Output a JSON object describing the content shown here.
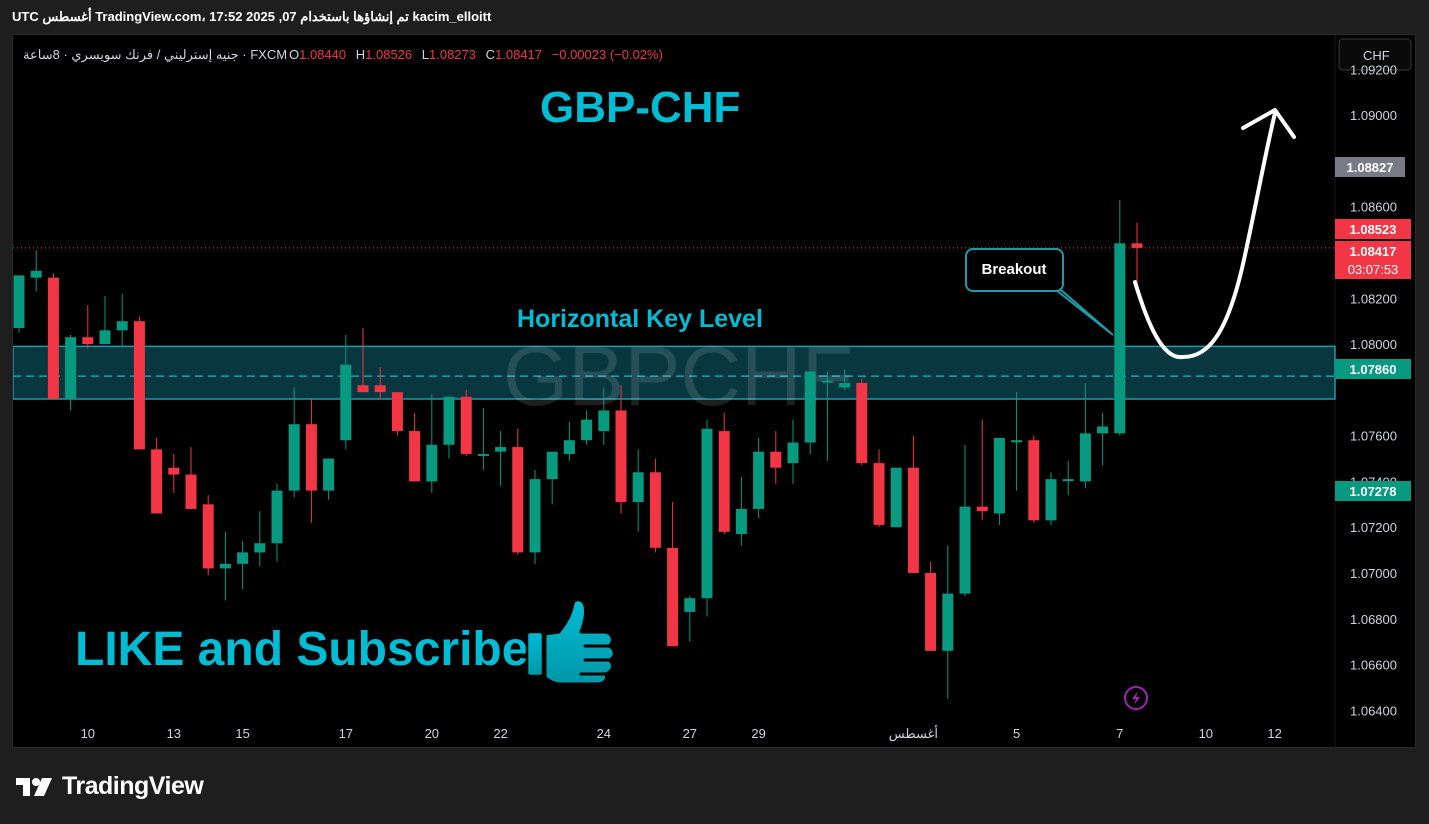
{
  "header": {
    "snapshot_text": "kacim_elloitt تم إنشاؤها باستخدام TradingView.com، 17:52 2025 ,07 أغسطس UTC"
  },
  "symbol_info": {
    "description": "جنيه إسترليني / فرنك سويسري · 8ساعة · FXCM",
    "open_label": "O",
    "open": "1.08440",
    "high_label": "H",
    "high": "1.08526",
    "low_label": "L",
    "low": "1.08273",
    "close_label": "C",
    "close": "1.08417",
    "change": "−0.00023 (−0.02%)"
  },
  "currency_button": "CHF",
  "annotations": {
    "title": "GBP-CHF",
    "watermark": "GBPCHF",
    "key_level": "Horizontal Key Level",
    "breakout": "Breakout",
    "cta": "LIKE and Subscribe"
  },
  "price_tags": {
    "gray": "1.08827",
    "red_high": "1.08523",
    "last": "1.08417",
    "countdown": "03:07:53",
    "green_mid": "1.07860",
    "green_low": "1.07278"
  },
  "footer": {
    "brand": "TradingView"
  },
  "colors": {
    "up": "#089981",
    "down": "#f23645",
    "accent": "#00bcd4",
    "zone_fill": "#0b4a55",
    "zone_border": "#1e9aa8",
    "text": "#d1d4dc"
  },
  "chart_data": {
    "type": "candlestick",
    "symbol": "GBPCHF",
    "y_axis": {
      "ticks": [
        "1.09200",
        "1.09000",
        "1.08600",
        "1.08200",
        "1.08000",
        "1.07600",
        "1.07400",
        "1.07200",
        "1.07000",
        "1.06800",
        "1.06600",
        "1.06400"
      ],
      "range": [
        1.0624,
        1.0935
      ]
    },
    "x_axis": {
      "ticks": [
        {
          "label": "10",
          "i": 4
        },
        {
          "label": "13",
          "i": 9
        },
        {
          "label": "15",
          "i": 13
        },
        {
          "label": "17",
          "i": 19
        },
        {
          "label": "20",
          "i": 24
        },
        {
          "label": "22",
          "i": 28
        },
        {
          "label": "24",
          "i": 34
        },
        {
          "label": "27",
          "i": 39
        },
        {
          "label": "29",
          "i": 43
        },
        {
          "label": "أغسطس",
          "i": 52
        },
        {
          "label": "5",
          "i": 58
        },
        {
          "label": "7",
          "i": 64
        },
        {
          "label": "10",
          "i": 69
        },
        {
          "label": "12",
          "i": 73
        }
      ]
    },
    "key_level": {
      "top": 1.0799,
      "mid": 1.0786,
      "bottom": 1.0776
    },
    "candles": [
      [
        1.0807,
        1.083,
        1.0805,
        1.083
      ],
      [
        1.0829,
        1.0841,
        1.0823,
        1.0832
      ],
      [
        1.0829,
        1.0831,
        1.0776,
        1.0776
      ],
      [
        1.0776,
        1.0804,
        1.0771,
        1.0803
      ],
      [
        1.0803,
        1.0817,
        1.0798,
        1.08
      ],
      [
        1.08,
        1.0821,
        1.08,
        1.0806
      ],
      [
        1.0806,
        1.0822,
        1.0799,
        1.081
      ],
      [
        1.081,
        1.0812,
        1.0754,
        1.0754
      ],
      [
        1.0754,
        1.0759,
        1.0726,
        1.0726
      ],
      [
        1.0746,
        1.0752,
        1.0735,
        1.0743
      ],
      [
        1.0743,
        1.0755,
        1.0728,
        1.0728
      ],
      [
        1.073,
        1.0734,
        1.0699,
        1.0702
      ],
      [
        1.0702,
        1.0718,
        1.0688,
        1.0704
      ],
      [
        1.0704,
        1.0714,
        1.0693,
        1.0709
      ],
      [
        1.0709,
        1.0727,
        1.0703,
        1.0713
      ],
      [
        1.0713,
        1.0739,
        1.0705,
        1.0736
      ],
      [
        1.0736,
        1.0781,
        1.0733,
        1.0765
      ],
      [
        1.0765,
        1.0776,
        1.0722,
        1.0736
      ],
      [
        1.0736,
        1.075,
        1.0732,
        1.075
      ],
      [
        1.0758,
        1.0804,
        1.0754,
        1.0791
      ],
      [
        1.0782,
        1.0807,
        1.0779,
        1.0779
      ],
      [
        1.0782,
        1.079,
        1.0776,
        1.0779
      ],
      [
        1.0779,
        1.0777,
        1.076,
        1.0762
      ],
      [
        1.0762,
        1.077,
        1.074,
        1.074
      ],
      [
        1.074,
        1.0778,
        1.0735,
        1.0756
      ],
      [
        1.0756,
        1.0775,
        1.075,
        1.0777
      ],
      [
        1.0777,
        1.078,
        1.0751,
        1.0752
      ],
      [
        1.0752,
        1.0772,
        1.0745,
        1.0752
      ],
      [
        1.0753,
        1.0762,
        1.0738,
        1.0755
      ],
      [
        1.0755,
        1.0763,
        1.0708,
        1.0709
      ],
      [
        1.0709,
        1.0745,
        1.0704,
        1.0741
      ],
      [
        1.0741,
        1.0752,
        1.073,
        1.0753
      ],
      [
        1.0752,
        1.0766,
        1.0749,
        1.0758
      ],
      [
        1.0758,
        1.0771,
        1.0756,
        1.0767
      ],
      [
        1.0762,
        1.0781,
        1.0756,
        1.0771
      ],
      [
        1.0771,
        1.0782,
        1.0726,
        1.0731
      ],
      [
        1.0731,
        1.0754,
        1.0718,
        1.0744
      ],
      [
        1.0744,
        1.075,
        1.0709,
        1.0711
      ],
      [
        1.0711,
        1.0731,
        1.0668,
        1.0668
      ],
      [
        1.0683,
        1.069,
        1.067,
        1.0689
      ],
      [
        1.0689,
        1.0767,
        1.0681,
        1.0763
      ],
      [
        1.0762,
        1.077,
        1.0717,
        1.0718
      ],
      [
        1.0717,
        1.0742,
        1.0712,
        1.0728
      ],
      [
        1.0728,
        1.0759,
        1.0724,
        1.0753
      ],
      [
        1.0753,
        1.0762,
        1.0739,
        1.0746
      ],
      [
        1.0748,
        1.0767,
        1.0739,
        1.0757
      ],
      [
        1.0757,
        1.0788,
        1.0752,
        1.0788
      ],
      [
        1.0784,
        1.0788,
        1.0749,
        1.0784
      ],
      [
        1.0781,
        1.0789,
        1.078,
        1.0783
      ],
      [
        1.0783,
        1.0785,
        1.0747,
        1.0748
      ],
      [
        1.0748,
        1.0754,
        1.072,
        1.0721
      ],
      [
        1.072,
        1.0744,
        1.072,
        1.0746
      ],
      [
        1.0746,
        1.076,
        1.07,
        1.07
      ],
      [
        1.07,
        1.0705,
        1.0667,
        1.0666
      ],
      [
        1.0666,
        1.0712,
        1.0645,
        1.0691
      ],
      [
        1.0691,
        1.0756,
        1.069,
        1.0729
      ],
      [
        1.0729,
        1.0767,
        1.0723,
        1.0727
      ],
      [
        1.0726,
        1.0759,
        1.0721,
        1.0759
      ],
      [
        1.0758,
        1.0779,
        1.0736,
        1.0758
      ],
      [
        1.0758,
        1.076,
        1.0722,
        1.0723
      ],
      [
        1.0723,
        1.0744,
        1.0721,
        1.0741
      ],
      [
        1.0741,
        1.0749,
        1.0734,
        1.0741
      ],
      [
        1.074,
        1.0783,
        1.0737,
        1.0761
      ],
      [
        1.0761,
        1.077,
        1.0747,
        1.0764
      ],
      [
        1.0761,
        1.0863,
        1.076,
        1.0844
      ],
      [
        1.0844,
        1.0853,
        1.0827,
        1.0842
      ]
    ]
  }
}
